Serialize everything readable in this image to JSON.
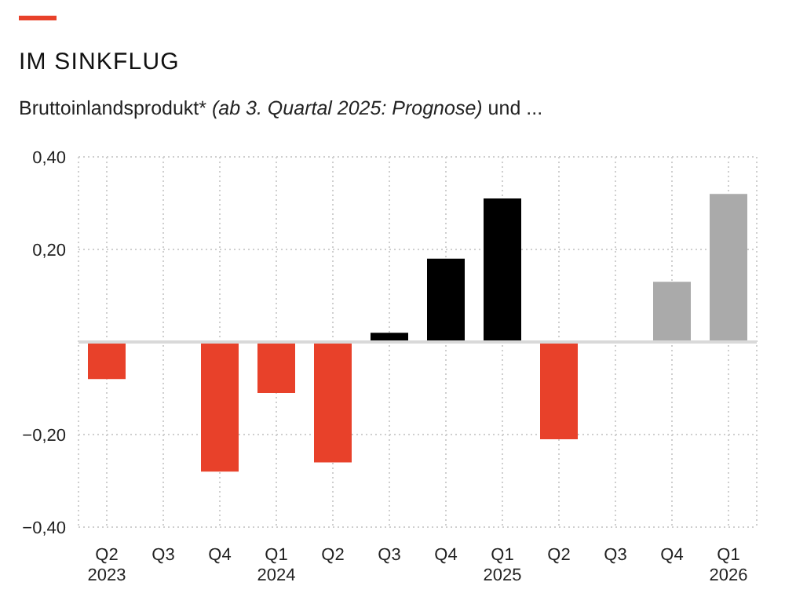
{
  "chart_data": {
    "type": "bar",
    "title": "IM SINKFLUG",
    "subtitle": "Bruttoinlandsprodukt* (ab 3. Quartal 2025: Prognose) und ...",
    "categories": [
      "Q2\n2023",
      "Q3",
      "Q4",
      "Q1\n2024",
      "Q2",
      "Q3",
      "Q4",
      "Q1\n2025",
      "Q2",
      "Q3",
      "Q4",
      "Q1\n2026"
    ],
    "values": [
      -0.08,
      0,
      -0.28,
      -0.11,
      -0.26,
      0.02,
      0.18,
      0.31,
      -0.21,
      0,
      0.13,
      0.32
    ],
    "colors": [
      "#e8412a",
      "#e8412a",
      "#e8412a",
      "#e8412a",
      "#e8412a",
      "#000000",
      "#000000",
      "#000000",
      "#e8412a",
      "#aaaaaa",
      "#aaaaaa",
      "#aaaaaa"
    ],
    "ylim": [
      -0.4,
      0.4
    ],
    "yticks": [
      {
        "value": -0.4,
        "label": "−0,40"
      },
      {
        "value": -0.2,
        "label": "−0,20"
      },
      {
        "value": 0.2,
        "label": "0,20"
      },
      {
        "value": 0.4,
        "label": "0,40"
      }
    ],
    "ref_lines": [
      {
        "axis": "y",
        "value": 0,
        "color": "#d9d9d9"
      }
    ],
    "grid": true
  }
}
